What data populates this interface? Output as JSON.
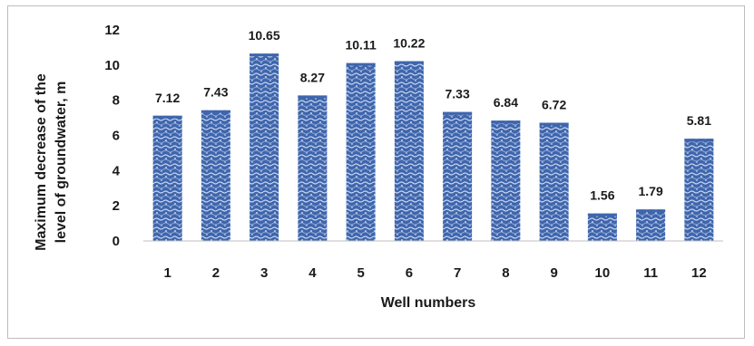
{
  "chart_data": {
    "type": "bar",
    "title": "",
    "xlabel": "Well numbers",
    "ylabel_lines": [
      "Maximum decrease of the",
      "level of groundwater, m"
    ],
    "categories": [
      "1",
      "2",
      "3",
      "4",
      "5",
      "6",
      "7",
      "8",
      "9",
      "10",
      "11",
      "12"
    ],
    "values": [
      7.12,
      7.43,
      10.65,
      8.27,
      10.11,
      10.22,
      7.33,
      6.84,
      6.72,
      1.56,
      1.79,
      5.81
    ],
    "data_labels": [
      "7.12",
      "7.43",
      "10.65",
      "8.27",
      "10.11",
      "10.22",
      "7.33",
      "6.84",
      "6.72",
      "1.56",
      "1.79",
      "5.81"
    ],
    "yticks": [
      "0",
      "2",
      "4",
      "6",
      "8",
      "10",
      "12"
    ],
    "ylim": [
      0,
      12
    ],
    "grid": false,
    "legend": "none",
    "bar_color": "#3f66ad",
    "bar_highlight": "#c9d6ee"
  }
}
